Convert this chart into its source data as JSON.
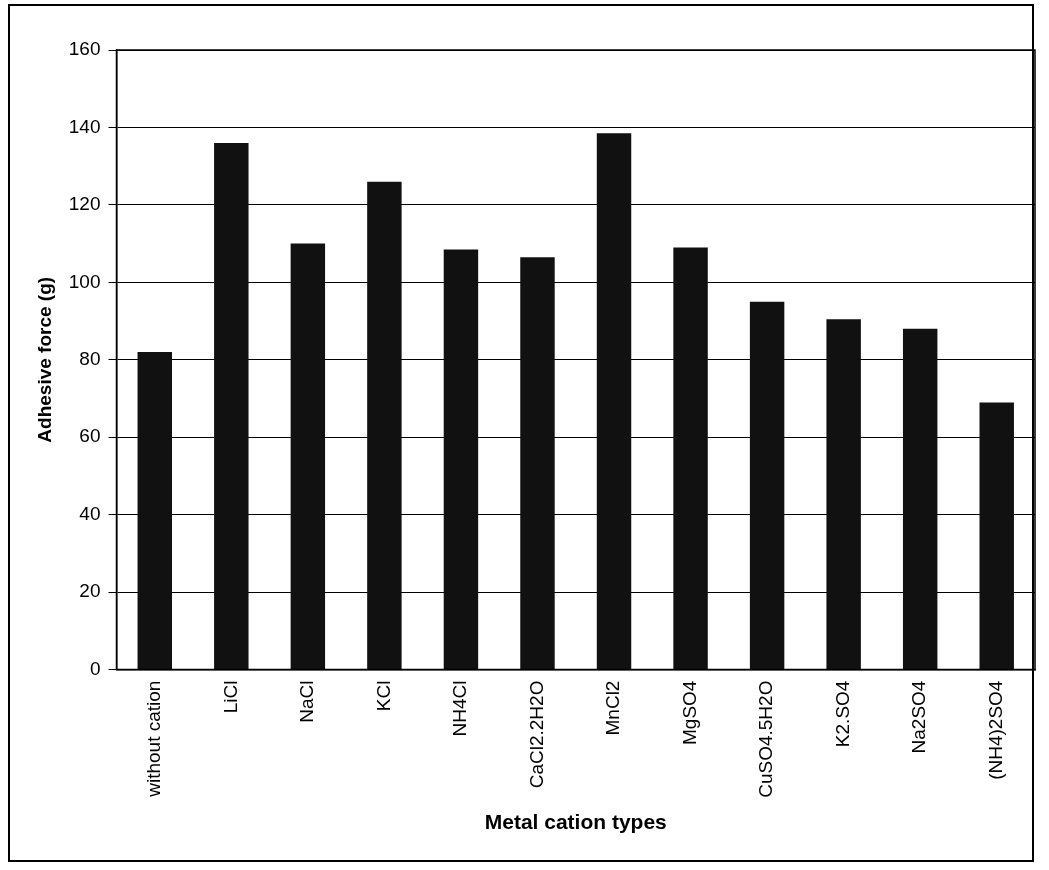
{
  "chart_data": {
    "type": "bar",
    "xlabel": "Metal cation types",
    "ylabel": "Adhesive force (g)",
    "categories": [
      "without cation",
      "LiCl",
      "NaCl",
      "KCl",
      "NH4Cl",
      "CaCl2.2H2O",
      "MnCl2",
      "MgSO4",
      "CuSO4.5H2O",
      "K2.SO4",
      "Na2SO4",
      "(NH4)2SO4"
    ],
    "values": [
      82,
      136,
      110,
      126,
      108.5,
      106.5,
      138.5,
      109,
      95,
      90.5,
      88,
      69
    ],
    "color": "#111111",
    "ylim": [
      0,
      160
    ],
    "yticks": [
      0,
      20,
      40,
      60,
      80,
      100,
      120,
      140,
      160
    ],
    "grid": "y",
    "legend": false
  }
}
